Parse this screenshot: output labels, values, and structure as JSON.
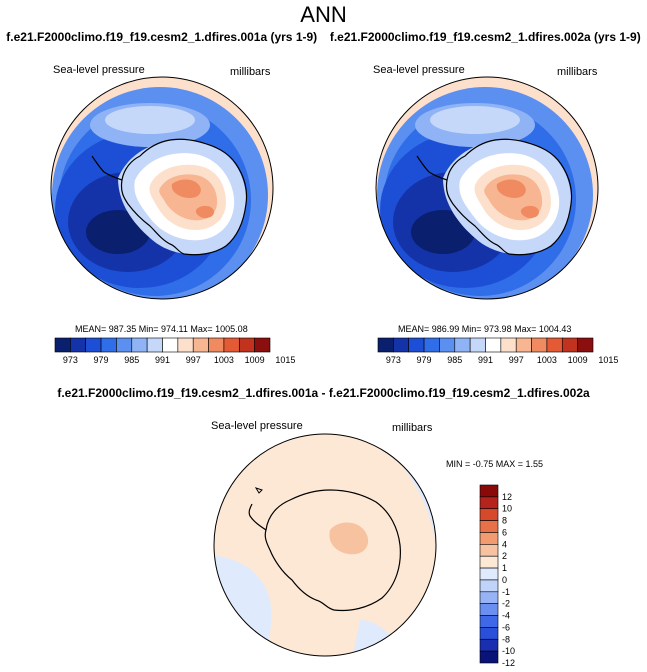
{
  "header": {
    "title": "ANN",
    "case1_label": "f.e21.F2000climo.f19_f19.cesm2_1.dfires.001a (yrs 1-9)",
    "case2_label": "f.e21.F2000climo.f19_f19.cesm2_1.dfires.002a (yrs 1-9)",
    "diff_label": "f.e21.F2000climo.f19_f19.cesm2_1.dfires.001a - f.e21.F2000climo.f19_f19.cesm2_1.dfires.002a"
  },
  "panel1": {
    "variable": "Sea-level pressure",
    "units": "millibars",
    "stats_text": "MEAN= 987.35   Min= 974.11   Max= 1005.08"
  },
  "panel2": {
    "variable": "Sea-level pressure",
    "units": "millibars",
    "stats_text": "MEAN= 986.99   Min= 973.98   Max= 1004.43"
  },
  "panel3": {
    "variable": "Sea-level pressure",
    "units": "millibars",
    "stats_text": "MIN =  -0.75  MAX =   1.55"
  },
  "colors": {
    "field_levels": [
      "#0a1f6e",
      "#1433a8",
      "#1d4fd6",
      "#2f6ee8",
      "#5b8ff0",
      "#8fb3f5",
      "#c5d8fa",
      "#ffffff",
      "#fde0cc",
      "#f7b591",
      "#f08a60",
      "#e45a35",
      "#c2331f",
      "#8c0f0f"
    ],
    "diff_levels": [
      "#0a1478",
      "#1a2fb0",
      "#2a4fd8",
      "#3e68e8",
      "#6a8ff0",
      "#97b3f5",
      "#c0d3f9",
      "#dfeafc",
      "#fde8d6",
      "#f7c2a0",
      "#f29b70",
      "#e8714a",
      "#d6492a",
      "#b4231c",
      "#8a0a0a"
    ],
    "coast": "#000000"
  },
  "chart_data": [
    {
      "type": "heatmap",
      "projection": "south-polar-stereographic",
      "title": "Sea-level pressure",
      "units": "millibars",
      "case": "f.e21.F2000climo.f19_f19.cesm2_1.dfires.001a (yrs 1-9)",
      "mean": 987.35,
      "min": 974.11,
      "max": 1005.08,
      "colorbar": {
        "orientation": "horizontal",
        "ticks": [
          "973",
          "979",
          "985",
          "991",
          "997",
          "1003",
          "1009",
          "1015"
        ]
      }
    },
    {
      "type": "heatmap",
      "projection": "south-polar-stereographic",
      "title": "Sea-level pressure",
      "units": "millibars",
      "case": "f.e21.F2000climo.f19_f19.cesm2_1.dfires.002a (yrs 1-9)",
      "mean": 986.99,
      "min": 973.98,
      "max": 1004.43,
      "colorbar": {
        "orientation": "horizontal",
        "ticks": [
          "973",
          "979",
          "985",
          "991",
          "997",
          "1003",
          "1009",
          "1015"
        ]
      }
    },
    {
      "type": "heatmap",
      "projection": "south-polar-stereographic",
      "title": "Sea-level pressure",
      "units": "millibars",
      "case": "f.e21.F2000climo.f19_f19.cesm2_1.dfires.001a - f.e21.F2000climo.f19_f19.cesm2_1.dfires.002a",
      "min": -0.75,
      "max": 1.55,
      "colorbar": {
        "orientation": "vertical",
        "ticks": [
          "12",
          "10",
          "8",
          "6",
          "4",
          "2",
          "1",
          "0",
          "-1",
          "-2",
          "-4",
          "-6",
          "-8",
          "-10",
          "-12"
        ]
      }
    }
  ]
}
